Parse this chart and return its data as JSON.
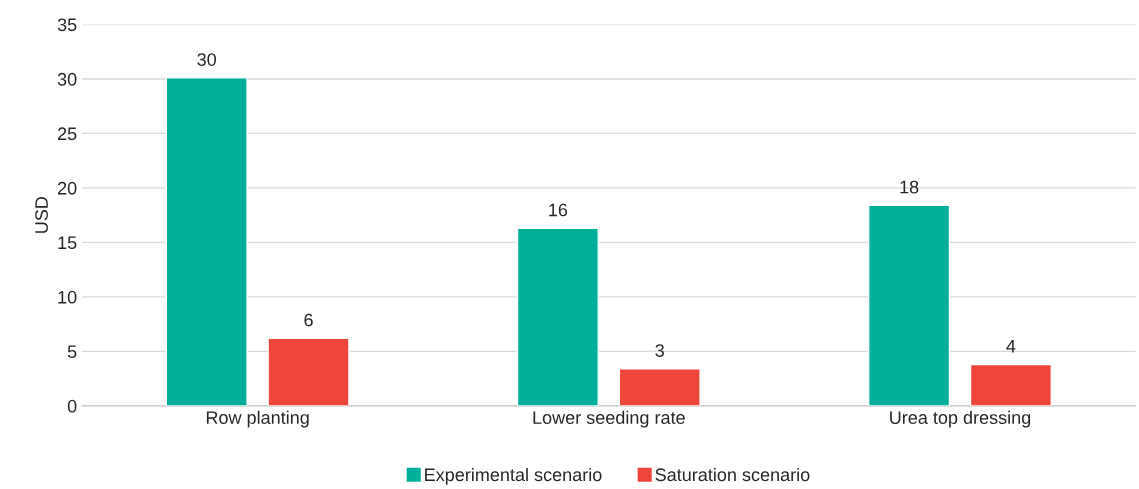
{
  "chart_data": {
    "type": "bar",
    "ylabel": "USD",
    "categories": [
      "Row planting",
      "Lower seeding rate",
      "Urea top dressing"
    ],
    "series": [
      {
        "name": "Experimental scenario",
        "color": "#00af9a",
        "values": [
          30.1,
          16.3,
          18.4
        ],
        "value_labels": [
          "30",
          "16",
          "18"
        ]
      },
      {
        "name": "Saturation scenario",
        "color": "#ef463c",
        "values": [
          6.2,
          3.4,
          3.8
        ],
        "value_labels": [
          "6",
          "3",
          "4"
        ]
      }
    ],
    "ylim": [
      0,
      35
    ],
    "yticks": [
      0,
      5,
      10,
      15,
      20,
      25,
      30,
      35
    ],
    "grid": "y",
    "legend": "bottom"
  }
}
